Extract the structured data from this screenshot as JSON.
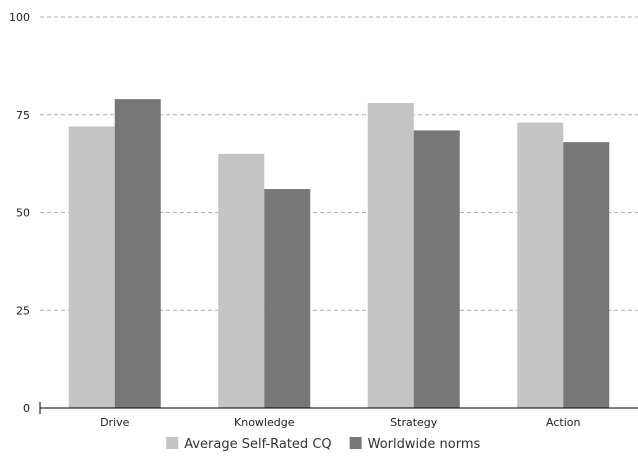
{
  "chart_data": {
    "type": "bar",
    "categories": [
      "Drive",
      "Knowledge",
      "Strategy",
      "Action"
    ],
    "series": [
      {
        "name": "Average Self-Rated CQ",
        "values": [
          72,
          65,
          78,
          73
        ],
        "color": "#c4c4c4"
      },
      {
        "name": "Worldwide norms",
        "values": [
          79,
          56,
          71,
          68
        ],
        "color": "#777777"
      }
    ],
    "ylim": [
      0,
      100
    ],
    "yticks": [
      0,
      25,
      50,
      75,
      100
    ],
    "grid": true,
    "legend_position": "bottom-center",
    "title": "",
    "xlabel": "",
    "ylabel": ""
  }
}
